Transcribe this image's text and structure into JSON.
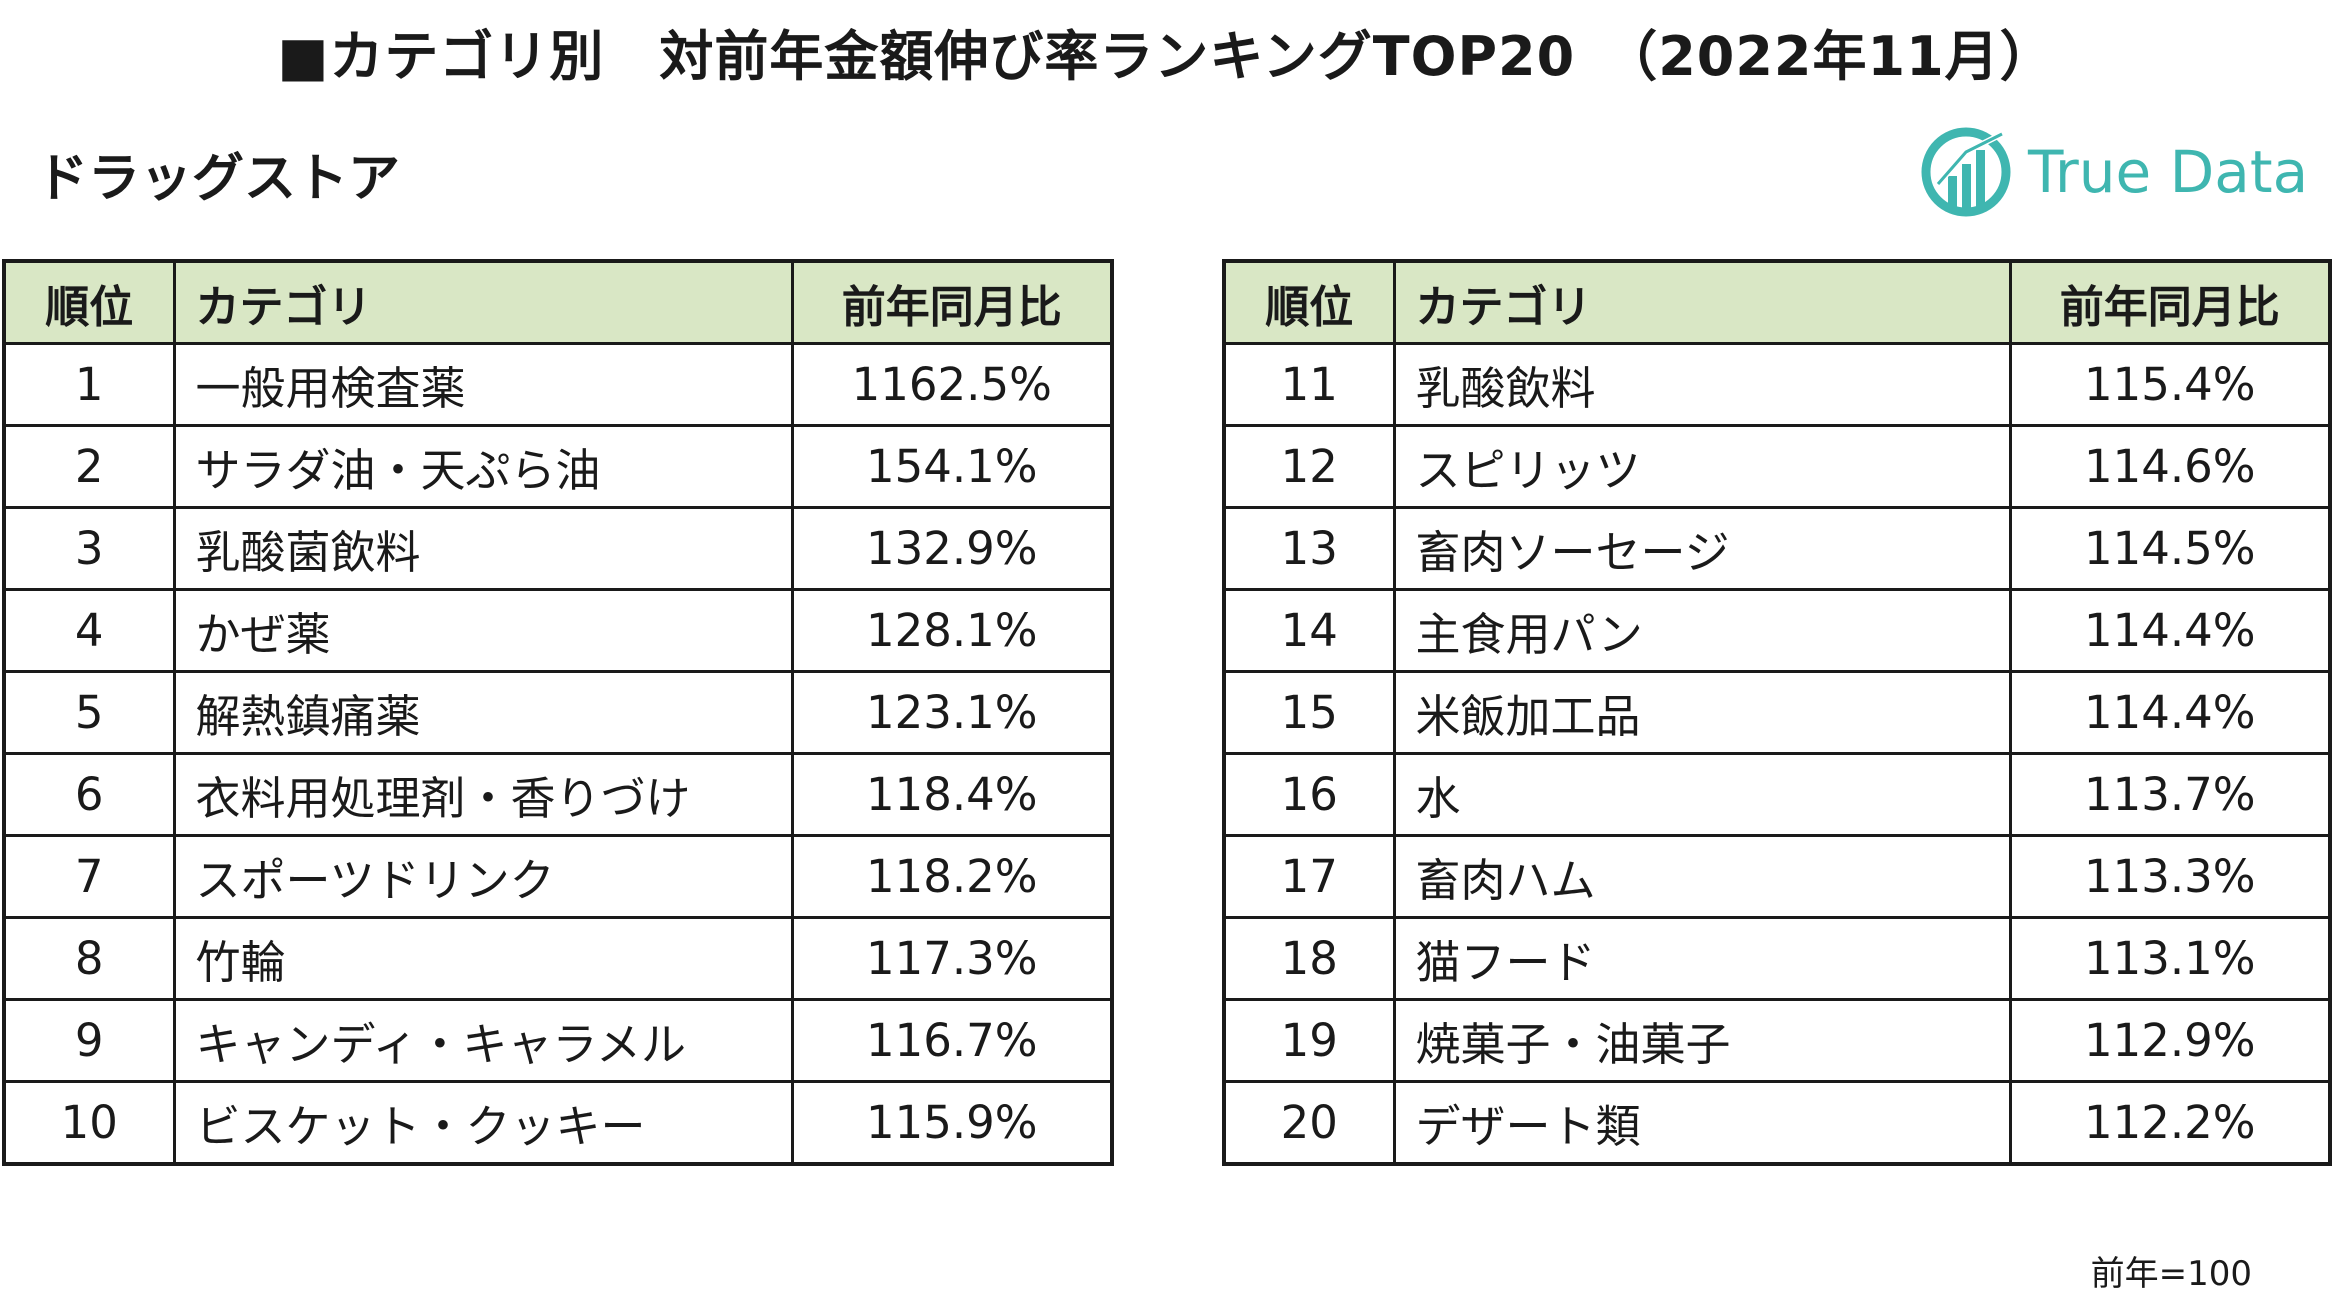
{
  "title": "■カテゴリ別　対前年金額伸び率ランキングTOP20　（2022年11月）",
  "subtitle": "ドラッグストア",
  "logo": {
    "text": "True Data",
    "icon": "bar-chart-circle-icon",
    "color": "#3fb6b0"
  },
  "table": {
    "header_bg": "#d9e7c5",
    "headers": {
      "rank": "順位",
      "category": "カテゴリ",
      "ratio": "前年同月比"
    },
    "rows": [
      {
        "rank": "1",
        "category": "一般用検査薬",
        "ratio": "1162.5%"
      },
      {
        "rank": "2",
        "category": "サラダ油・天ぷら油",
        "ratio": "154.1%"
      },
      {
        "rank": "3",
        "category": "乳酸菌飲料",
        "ratio": "132.9%"
      },
      {
        "rank": "4",
        "category": "かぜ薬",
        "ratio": "128.1%"
      },
      {
        "rank": "5",
        "category": "解熱鎮痛薬",
        "ratio": "123.1%"
      },
      {
        "rank": "6",
        "category": "衣料用処理剤・香りづけ",
        "ratio": "118.4%"
      },
      {
        "rank": "7",
        "category": "スポーツドリンク",
        "ratio": "118.2%"
      },
      {
        "rank": "8",
        "category": "竹輪",
        "ratio": "117.3%"
      },
      {
        "rank": "9",
        "category": "キャンディ・キャラメル",
        "ratio": "116.7%"
      },
      {
        "rank": "10",
        "category": "ビスケット・クッキー",
        "ratio": "115.9%"
      },
      {
        "rank": "11",
        "category": "乳酸飲料",
        "ratio": "115.4%"
      },
      {
        "rank": "12",
        "category": "スピリッツ",
        "ratio": "114.6%"
      },
      {
        "rank": "13",
        "category": "畜肉ソーセージ",
        "ratio": "114.5%"
      },
      {
        "rank": "14",
        "category": "主食用パン",
        "ratio": "114.4%"
      },
      {
        "rank": "15",
        "category": "米飯加工品",
        "ratio": "114.4%"
      },
      {
        "rank": "16",
        "category": "水",
        "ratio": "113.7%"
      },
      {
        "rank": "17",
        "category": "畜肉ハム",
        "ratio": "113.3%"
      },
      {
        "rank": "18",
        "category": "猫フード",
        "ratio": "113.1%"
      },
      {
        "rank": "19",
        "category": "焼菓子・油菓子",
        "ratio": "112.9%"
      },
      {
        "rank": "20",
        "category": "デザート類",
        "ratio": "112.2%"
      }
    ]
  },
  "footnote": "前年=100"
}
